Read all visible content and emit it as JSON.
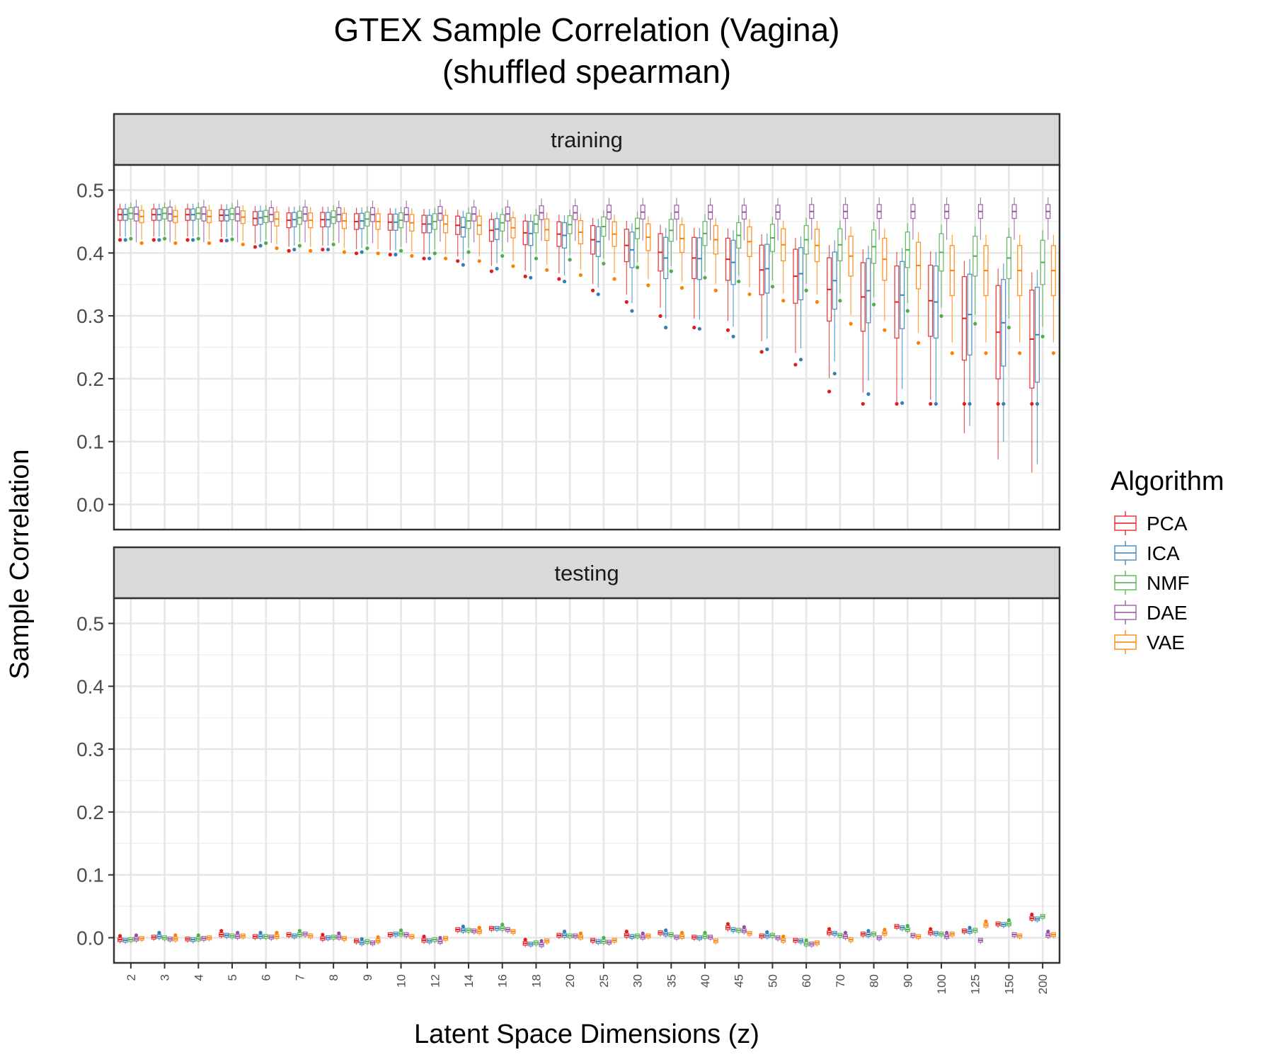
{
  "chart_data": {
    "type": "box",
    "title": "GTEX Sample Correlation (Vagina)",
    "subtitle": "(shuffled spearman)",
    "xlabel": "Latent Space Dimensions (z)",
    "ylabel": "Sample Correlation",
    "ylim": [
      -0.04,
      0.54
    ],
    "yticks": [
      "0.0",
      "0.1",
      "0.2",
      "0.3",
      "0.4",
      "0.5"
    ],
    "categories": [
      "2",
      "3",
      "4",
      "5",
      "6",
      "7",
      "8",
      "9",
      "10",
      "12",
      "14",
      "16",
      "18",
      "20",
      "25",
      "30",
      "35",
      "40",
      "45",
      "50",
      "60",
      "70",
      "80",
      "90",
      "100",
      "125",
      "150",
      "200"
    ],
    "legend": {
      "title": "Algorithm",
      "position": "right",
      "items": [
        {
          "name": "PCA",
          "color": "#e41a1c"
        },
        {
          "name": "ICA",
          "color": "#377eb8"
        },
        {
          "name": "NMF",
          "color": "#4daf4a"
        },
        {
          "name": "DAE",
          "color": "#984ea3"
        },
        {
          "name": "VAE",
          "color": "#ff7f00"
        }
      ]
    },
    "grid": true,
    "facets": [
      {
        "label": "training",
        "medians": {
          "PCA": [
            0.461,
            0.461,
            0.461,
            0.46,
            0.455,
            0.452,
            0.453,
            0.45,
            0.449,
            0.446,
            0.444,
            0.436,
            0.432,
            0.43,
            0.421,
            0.412,
            0.401,
            0.392,
            0.39,
            0.373,
            0.363,
            0.342,
            0.33,
            0.322,
            0.324,
            0.296,
            0.274,
            0.263
          ],
          "ICA": [
            0.461,
            0.461,
            0.461,
            0.46,
            0.456,
            0.453,
            0.453,
            0.451,
            0.449,
            0.446,
            0.441,
            0.438,
            0.431,
            0.428,
            0.418,
            0.405,
            0.392,
            0.391,
            0.385,
            0.375,
            0.367,
            0.356,
            0.34,
            0.333,
            0.322,
            0.302,
            0.289,
            0.27
          ],
          "NMF": [
            0.463,
            0.463,
            0.463,
            0.462,
            0.458,
            0.456,
            0.457,
            0.454,
            0.452,
            0.45,
            0.451,
            0.448,
            0.446,
            0.445,
            0.442,
            0.439,
            0.436,
            0.431,
            0.428,
            0.424,
            0.421,
            0.413,
            0.41,
            0.405,
            0.401,
            0.395,
            0.392,
            0.385
          ],
          "DAE": [
            0.462,
            0.462,
            0.462,
            0.462,
            0.461,
            0.462,
            0.461,
            0.461,
            0.461,
            0.463,
            0.462,
            0.462,
            0.464,
            0.464,
            0.465,
            0.465,
            0.465,
            0.465,
            0.465,
            0.465,
            0.466,
            0.466,
            0.466,
            0.466,
            0.466,
            0.466,
            0.466,
            0.466
          ],
          "VAE": [
            0.458,
            0.458,
            0.458,
            0.457,
            0.454,
            0.452,
            0.451,
            0.45,
            0.448,
            0.446,
            0.444,
            0.44,
            0.437,
            0.433,
            0.43,
            0.425,
            0.423,
            0.421,
            0.418,
            0.413,
            0.412,
            0.395,
            0.39,
            0.38,
            0.372,
            0.372,
            0.372,
            0.372
          ]
        }
      },
      {
        "label": "testing",
        "medians": {
          "PCA": [
            -0.003,
            0.001,
            -0.002,
            0.005,
            0.002,
            0.005,
            -0.001,
            -0.005,
            0.005,
            -0.004,
            0.013,
            0.015,
            -0.009,
            0.004,
            -0.004,
            0.004,
            0.008,
            0.001,
            0.016,
            0.003,
            -0.004,
            0.008,
            0.006,
            0.018,
            0.008,
            0.011,
            0.022,
            0.031
          ],
          "ICA": [
            -0.004,
            0.002,
            -0.003,
            0.004,
            0.002,
            0.003,
            0.0,
            -0.008,
            0.006,
            -0.005,
            0.012,
            0.015,
            -0.01,
            0.004,
            -0.006,
            0.002,
            0.006,
            0.0,
            0.013,
            0.003,
            -0.005,
            0.007,
            0.005,
            0.016,
            0.007,
            0.01,
            0.021,
            0.03
          ],
          "NMF": [
            -0.003,
            0.0,
            -0.002,
            0.003,
            0.002,
            0.005,
            0.001,
            -0.006,
            0.006,
            -0.003,
            0.012,
            0.015,
            -0.008,
            0.003,
            -0.006,
            0.003,
            0.005,
            0.002,
            0.012,
            0.004,
            -0.01,
            0.004,
            0.006,
            0.013,
            0.006,
            0.012,
            0.022,
            0.034
          ],
          "DAE": [
            -0.002,
            -0.002,
            -0.001,
            0.002,
            0.001,
            0.006,
            0.001,
            -0.008,
            0.005,
            -0.006,
            0.011,
            0.013,
            -0.011,
            0.003,
            -0.007,
            0.001,
            0.001,
            0.001,
            0.011,
            0.0,
            -0.01,
            0.002,
            0.0,
            0.004,
            0.002,
            -0.004,
            0.005,
            0.004
          ],
          "VAE": [
            -0.001,
            -0.002,
            0.0,
            0.003,
            0.002,
            0.003,
            -0.001,
            -0.005,
            0.002,
            -0.001,
            0.01,
            0.01,
            -0.005,
            0.001,
            -0.004,
            0.003,
            0.002,
            -0.005,
            0.007,
            -0.004,
            -0.008,
            -0.003,
            0.007,
            0.002,
            0.006,
            0.02,
            0.003,
            0.005
          ]
        }
      }
    ]
  }
}
